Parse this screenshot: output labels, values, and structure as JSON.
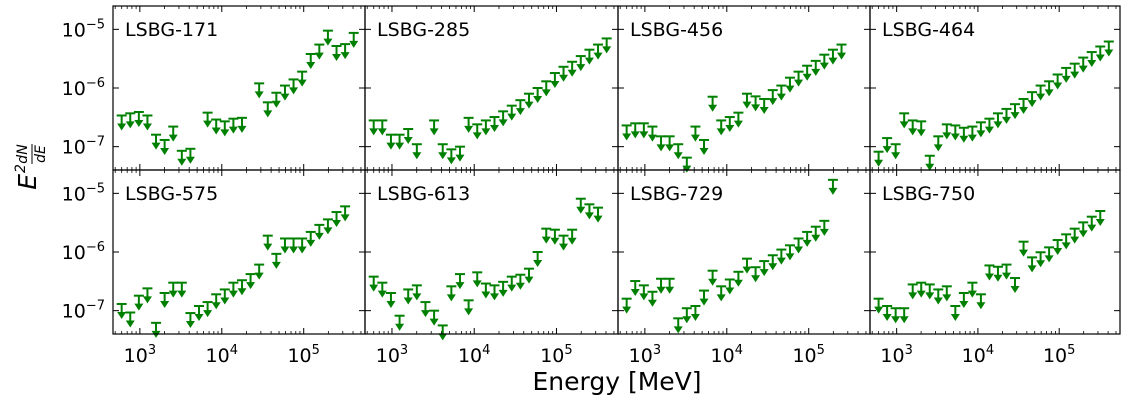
{
  "chart_data": {
    "type": "scatter",
    "marker": "upper-limit-arrow",
    "color": "#008000",
    "xlabel": "Energy [MeV]",
    "ylabel": "E^2 dN/dE",
    "ylabel_parts": {
      "main": "E",
      "sup": "2",
      "num": "dN",
      "den": "dE"
    },
    "xscale": "log",
    "yscale": "log",
    "xlim": [
      470,
      560000
    ],
    "ylim": [
      4e-08,
      2.5e-05
    ],
    "xticks": [
      {
        "value": 1000,
        "base": "10",
        "exp": "3"
      },
      {
        "value": 10000,
        "base": "10",
        "exp": "4"
      },
      {
        "value": 100000,
        "base": "10",
        "exp": "5"
      }
    ],
    "yticks": [
      {
        "value": 1e-07,
        "base": "10",
        "exp": "−7"
      },
      {
        "value": 1e-06,
        "base": "10",
        "exp": "−6"
      },
      {
        "value": 1e-05,
        "base": "10",
        "exp": "−5"
      }
    ],
    "energies": [
      599.5,
      763.3,
      971.9,
      1237.5,
      1575.5,
      2006.1,
      2554.2,
      3252.1,
      4140.8,
      5272.2,
      6712.8,
      8547.0,
      10882.4,
      13856.0,
      17642.1,
      22462.9,
      28600.8,
      36415.9,
      46366.4,
      59036.0,
      75167.5,
      95707.0,
      121858.9,
      155157.0,
      197553.7,
      251535.3,
      320267.5,
      407780.8
    ],
    "panels": [
      {
        "name": "LSBG-171",
        "values": [
          3.4e-07,
          3.7e-07,
          3.9e-07,
          3.4e-07,
          1.6e-07,
          1.3e-07,
          2.2e-07,
          8.5e-08,
          9.2e-08,
          null,
          3.8e-07,
          2.9e-07,
          2.7e-07,
          3e-07,
          3.1e-07,
          null,
          1.2e-06,
          5.7e-07,
          8.3e-07,
          1.1e-06,
          1.4e-06,
          1.9e-06,
          3.8e-06,
          5.5e-06,
          9.5e-06,
          5.2e-06,
          5.6e-06,
          8.7e-06
        ]
      },
      {
        "name": "LSBG-285",
        "values": [
          2.8e-07,
          2.8e-07,
          1.6e-07,
          1.6e-07,
          2e-07,
          1.1e-07,
          null,
          2.8e-07,
          1.1e-07,
          9e-08,
          1e-07,
          3.1e-07,
          2.4e-07,
          2.8e-07,
          3.2e-07,
          4e-07,
          5e-07,
          6.2e-07,
          8e-07,
          1e-06,
          1.3e-06,
          1.8e-06,
          2.3e-06,
          2.8e-06,
          3.5e-06,
          4.5e-06,
          5.5e-06,
          7e-06
        ]
      },
      {
        "name": "LSBG-456",
        "values": [
          2.3e-07,
          2.5e-07,
          2.5e-07,
          2.2e-07,
          1.5e-07,
          1.5e-07,
          1.1e-07,
          6.5e-08,
          2.2e-07,
          1.3e-07,
          7.1e-07,
          2.8e-07,
          3.2e-07,
          3.8e-07,
          8e-07,
          7.2e-07,
          6.5e-07,
          9.2e-07,
          1.1e-06,
          1.5e-06,
          1.9e-06,
          2.4e-06,
          2.9e-06,
          3.7e-06,
          4.5e-06,
          5.5e-06
        ]
      },
      {
        "name": "LSBG-464",
        "values": [
          8.2e-08,
          1.4e-07,
          1.1e-07,
          3.7e-07,
          2.8e-07,
          2.7e-07,
          7e-08,
          1.5e-07,
          2.4e-07,
          2.3e-07,
          2.1e-07,
          2.2e-07,
          2.6e-07,
          3e-07,
          3.7e-07,
          4.4e-07,
          5.3e-07,
          6.5e-07,
          8.5e-07,
          1.1e-06,
          1.3e-06,
          1.7e-06,
          2.2e-06,
          2.6e-06,
          3.3e-06,
          4.1e-06,
          5.1e-06,
          6.2e-06
        ]
      },
      {
        "name": "LSBG-575",
        "values": [
          1.3e-07,
          9.3e-08,
          1.8e-07,
          2.4e-07,
          6.2e-08,
          2e-07,
          3e-07,
          3e-07,
          9.1e-08,
          1.2e-07,
          1.4e-07,
          1.9e-07,
          2.3e-07,
          3e-07,
          3.3e-07,
          4.2e-07,
          6.1e-07,
          1.9e-06,
          9.3e-07,
          1.7e-06,
          1.7e-06,
          1.7e-06,
          2.2e-06,
          2.9e-06,
          3.6e-06,
          4.8e-06,
          6e-06
        ]
      },
      {
        "name": "LSBG-613",
        "values": [
          3.8e-07,
          3e-07,
          2e-07,
          8.2e-08,
          2.3e-07,
          2.7e-07,
          1.4e-07,
          1e-07,
          5.6e-08,
          2.6e-07,
          4.2e-07,
          1.5e-07,
          4.5e-07,
          2.9e-07,
          2.7e-07,
          3.1e-07,
          3.8e-07,
          4.1e-07,
          5.2e-07,
          1e-06,
          2.5e-06,
          2.4e-06,
          1.9e-06,
          2.4e-06,
          8.1e-06,
          6.5e-06,
          5.7e-06
        ]
      },
      {
        "name": "LSBG-729",
        "values": [
          1.6e-07,
          3.2e-07,
          2.7e-07,
          2.1e-07,
          3.5e-07,
          3.5e-07,
          7.4e-08,
          1.1e-07,
          1.2e-07,
          2.2e-07,
          4.8e-07,
          2.6e-07,
          3.4e-07,
          4.6e-07,
          7.7e-07,
          5.5e-07,
          7e-07,
          8.8e-07,
          1.1e-06,
          1.3e-06,
          1.7e-06,
          2.2e-06,
          2.7e-06,
          3.4e-06,
          1.7e-05
        ]
      },
      {
        "name": "LSBG-750",
        "values": [
          1.6e-07,
          1.2e-07,
          1.1e-07,
          1.1e-07,
          2.8e-07,
          3e-07,
          2.8e-07,
          2.3e-07,
          2.6e-07,
          1.2e-07,
          2e-07,
          3e-07,
          1.9e-07,
          5.9e-07,
          5.6e-07,
          6.1e-07,
          3.6e-07,
          1.5e-06,
          8.1e-07,
          9.9e-07,
          1.2e-06,
          1.6e-06,
          2e-06,
          2.5e-06,
          3.2e-06,
          4e-06,
          5e-06
        ]
      }
    ]
  }
}
